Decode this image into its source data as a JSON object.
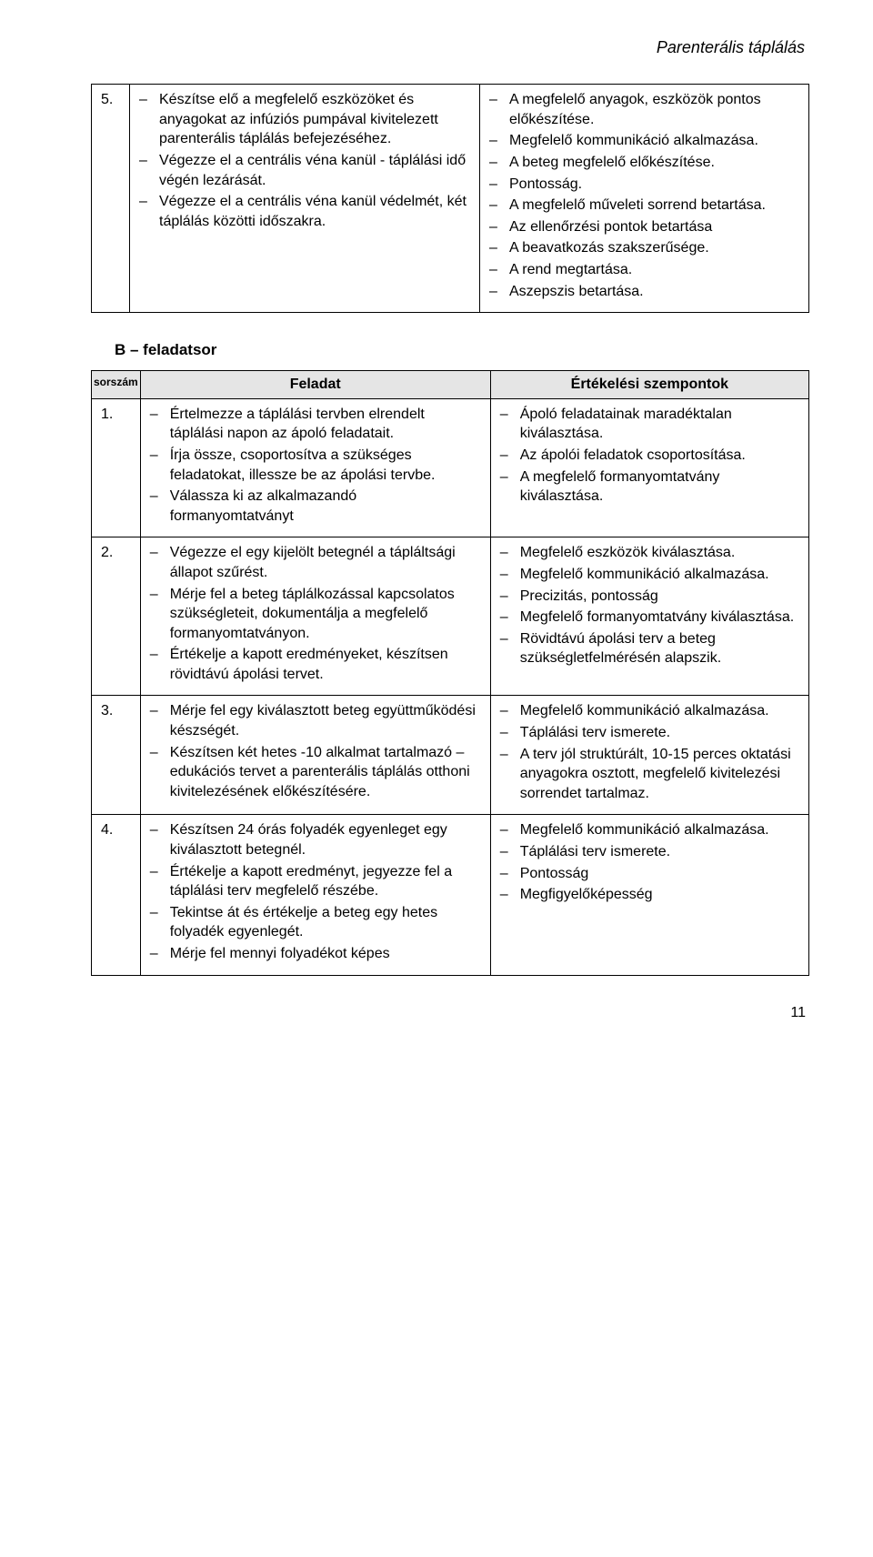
{
  "header": "Parenterális táplálás",
  "pageNumber": "11",
  "topTable": {
    "row": {
      "num": "5.",
      "tasks": [
        "Készítse elő a megfelelő eszközöket és anyagokat az infúziós pumpával kivitelezett parenterális táplálás befejezéséhez.",
        "Végezze el a centrális véna kanül - táplálási idő végén lezárását.",
        "Végezze el a centrális véna kanül védelmét, két táplálás közötti időszakra."
      ],
      "criteria": [
        "A megfelelő anyagok, eszközök pontos előkészítése.",
        "Megfelelő kommunikáció alkalmazása.",
        "A beteg megfelelő előkészítése.",
        "Pontosság.",
        "A megfelelő műveleti sorrend betartása.",
        "Az ellenőrzési pontok betartása",
        "A beavatkozás szakszerűsége.",
        "A rend megtartása.",
        "Aszepszis betartása."
      ]
    }
  },
  "sectionLabel": "B – feladatsor",
  "tableB": {
    "headers": {
      "sorszam": "sorszám",
      "feladat": "Feladat",
      "szempontok": "Értékelési szempontok"
    },
    "rows": [
      {
        "num": "1.",
        "tasks": [
          "Értelmezze a táplálási tervben elrendelt táplálási napon az ápoló feladatait.",
          "Írja össze, csoportosítva a szükséges feladatokat, illessze be az ápolási tervbe.",
          "Válassza ki az alkalmazandó formanyomtatványt"
        ],
        "criteria": [
          "Ápoló feladatainak maradéktalan kiválasztása.",
          "Az ápolói feladatok csoportosítása.",
          "A megfelelő formanyomtatvány kiválasztása."
        ]
      },
      {
        "num": "2.",
        "tasks": [
          "Végezze el egy kijelölt betegnél a tápláltsági állapot szűrést.",
          "Mérje fel a beteg táplálkozással kapcsolatos szükségleteit, dokumentálja a megfelelő formanyomtatványon.",
          "Értékelje a kapott eredményeket, készítsen rövidtávú ápolási tervet."
        ],
        "criteria": [
          "Megfelelő eszközök kiválasztása.",
          "Megfelelő kommunikáció alkalmazása.",
          "Precizitás, pontosság",
          "Megfelelő formanyomtatvány kiválasztása.",
          "Rövidtávú ápolási terv a beteg szükségletfelmérésén alapszik."
        ]
      },
      {
        "num": "3.",
        "tasks": [
          "Mérje fel egy kiválasztott beteg együttműködési készségét.",
          "Készítsen két hetes -10 alkalmat tartalmazó – edukációs tervet a parenterális táplálás otthoni kivitelezésének előkészítésére."
        ],
        "criteria": [
          "Megfelelő kommunikáció alkalmazása.",
          "Táplálási terv ismerete.",
          "A terv jól struktúrált, 10-15 perces oktatási anyagokra osztott, megfelelő kivitelezési sorrendet tartalmaz."
        ]
      },
      {
        "num": "4.",
        "tasks": [
          "Készítsen 24 órás folyadék egyenleget egy kiválasztott betegnél.",
          "Értékelje a kapott eredményt, jegyezze fel a táplálási terv megfelelő részébe.",
          "Tekintse át és értékelje a beteg egy hetes folyadék egyenlegét.",
          "Mérje fel mennyi folyadékot képes"
        ],
        "criteria": [
          "Megfelelő kommunikáció alkalmazása.",
          "Táplálási terv ismerete.",
          "Pontosság",
          "Megfigyelőképesség"
        ]
      }
    ]
  }
}
